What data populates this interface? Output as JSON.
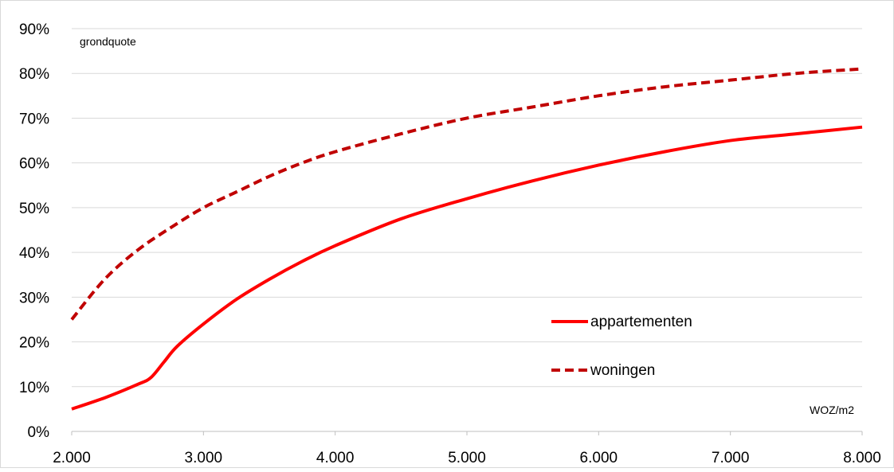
{
  "chart_data": {
    "type": "line",
    "title": "",
    "xlabel": "WOZ/m2",
    "ylabel": "grondquote",
    "xlim": [
      2000,
      8000
    ],
    "ylim": [
      0,
      0.9
    ],
    "x_ticks": [
      "2.000",
      "3.000",
      "4.000",
      "5.000",
      "6.000",
      "7.000",
      "8.000"
    ],
    "y_ticks": [
      "0%",
      "10%",
      "20%",
      "30%",
      "40%",
      "50%",
      "60%",
      "70%",
      "80%",
      "90%"
    ],
    "grid": "horizontal",
    "legend_position": "center-right",
    "series": [
      {
        "name": "appartementen",
        "style": "solid",
        "color": "#ff0000",
        "points": [
          [
            2000,
            0.05
          ],
          [
            2250,
            0.075
          ],
          [
            2500,
            0.105
          ],
          [
            2600,
            0.12
          ],
          [
            2700,
            0.155
          ],
          [
            2800,
            0.19
          ],
          [
            3000,
            0.24
          ],
          [
            3250,
            0.295
          ],
          [
            3500,
            0.34
          ],
          [
            3750,
            0.38
          ],
          [
            4000,
            0.415
          ],
          [
            4500,
            0.475
          ],
          [
            5000,
            0.52
          ],
          [
            5500,
            0.56
          ],
          [
            6000,
            0.595
          ],
          [
            6500,
            0.625
          ],
          [
            7000,
            0.65
          ],
          [
            7500,
            0.665
          ],
          [
            8000,
            0.68
          ]
        ]
      },
      {
        "name": "woningen",
        "style": "dashed",
        "color": "#c00000",
        "points": [
          [
            2000,
            0.25
          ],
          [
            2250,
            0.34
          ],
          [
            2500,
            0.405
          ],
          [
            2750,
            0.455
          ],
          [
            3000,
            0.5
          ],
          [
            3250,
            0.535
          ],
          [
            3500,
            0.57
          ],
          [
            3750,
            0.6
          ],
          [
            4000,
            0.625
          ],
          [
            4500,
            0.665
          ],
          [
            5000,
            0.7
          ],
          [
            5500,
            0.725
          ],
          [
            6000,
            0.75
          ],
          [
            6500,
            0.77
          ],
          [
            7000,
            0.785
          ],
          [
            7500,
            0.8
          ],
          [
            8000,
            0.81
          ]
        ]
      }
    ]
  }
}
